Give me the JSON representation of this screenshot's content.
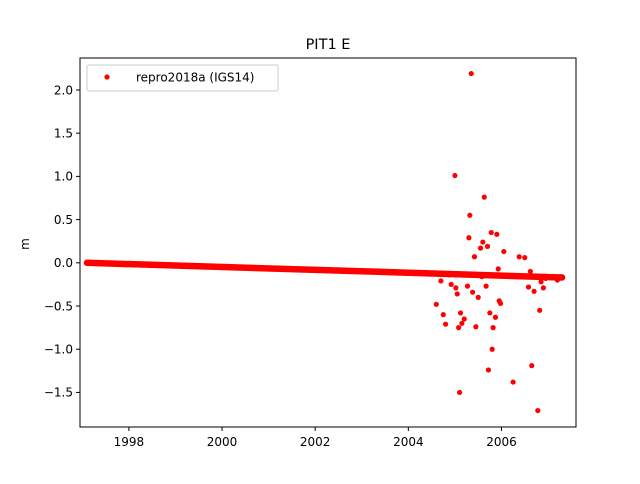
{
  "chart_data": {
    "type": "scatter",
    "title": "PIT1 E",
    "xlabel": "",
    "ylabel": "m",
    "xlim": [
      1996.95,
      2007.6
    ],
    "ylim": [
      -1.9,
      2.37
    ],
    "xticks": [
      1998,
      2000,
      2002,
      2004,
      2006
    ],
    "yticks": [
      -1.5,
      -1.0,
      -0.5,
      0.0,
      0.5,
      1.0,
      1.5,
      2.0
    ],
    "ytick_labels": [
      "−1.5",
      "−1.0",
      "−0.5",
      "0.0",
      "0.5",
      "1.0",
      "1.5",
      "2.0"
    ],
    "grid": false,
    "legend": {
      "position": "upper-left",
      "entries": [
        "repro2018a (IGS14)"
      ]
    },
    "series": [
      {
        "name": "repro2018a (IGS14)",
        "color": "#ff0000",
        "marker": "circle",
        "trend": {
          "x_start": 1997.1,
          "y_start": 0.0,
          "x_end": 2007.3,
          "y_end": -0.17
        },
        "points": [
          [
            1997.1,
            0.0
          ],
          [
            1997.35,
            -0.01
          ],
          [
            1997.6,
            0.0
          ],
          [
            2004.6,
            -0.48
          ],
          [
            2004.7,
            -0.21
          ],
          [
            2004.75,
            -0.6
          ],
          [
            2004.8,
            -0.71
          ],
          [
            2004.88,
            -0.14
          ],
          [
            2004.92,
            -0.25
          ],
          [
            2005.0,
            1.01
          ],
          [
            2005.02,
            -0.29
          ],
          [
            2005.05,
            -0.36
          ],
          [
            2005.08,
            -0.75
          ],
          [
            2005.1,
            -1.5
          ],
          [
            2005.12,
            -0.58
          ],
          [
            2005.15,
            -0.7
          ],
          [
            2005.2,
            -0.65
          ],
          [
            2005.27,
            -0.27
          ],
          [
            2005.3,
            0.29
          ],
          [
            2005.32,
            0.55
          ],
          [
            2005.35,
            2.19
          ],
          [
            2005.38,
            -0.34
          ],
          [
            2005.42,
            0.07
          ],
          [
            2005.45,
            -0.74
          ],
          [
            2005.5,
            -0.4
          ],
          [
            2005.55,
            0.17
          ],
          [
            2005.58,
            -0.16
          ],
          [
            2005.6,
            0.24
          ],
          [
            2005.63,
            0.76
          ],
          [
            2005.67,
            -0.27
          ],
          [
            2005.7,
            0.19
          ],
          [
            2005.72,
            -1.24
          ],
          [
            2005.75,
            -0.58
          ],
          [
            2005.78,
            0.35
          ],
          [
            2005.8,
            -1.0
          ],
          [
            2005.82,
            -0.75
          ],
          [
            2005.87,
            -0.63
          ],
          [
            2005.9,
            0.33
          ],
          [
            2005.93,
            -0.07
          ],
          [
            2005.95,
            -0.44
          ],
          [
            2005.98,
            -0.47
          ],
          [
            2006.05,
            0.13
          ],
          [
            2006.25,
            -1.38
          ],
          [
            2006.38,
            0.07
          ],
          [
            2006.5,
            0.06
          ],
          [
            2006.58,
            -0.28
          ],
          [
            2006.62,
            -0.1
          ],
          [
            2006.65,
            -1.19
          ],
          [
            2006.7,
            -0.33
          ],
          [
            2006.78,
            -1.71
          ],
          [
            2006.82,
            -0.55
          ],
          [
            2006.85,
            -0.22
          ],
          [
            2006.9,
            -0.29
          ],
          [
            2006.95,
            -0.18
          ],
          [
            2007.2,
            -0.2
          ]
        ]
      }
    ]
  }
}
